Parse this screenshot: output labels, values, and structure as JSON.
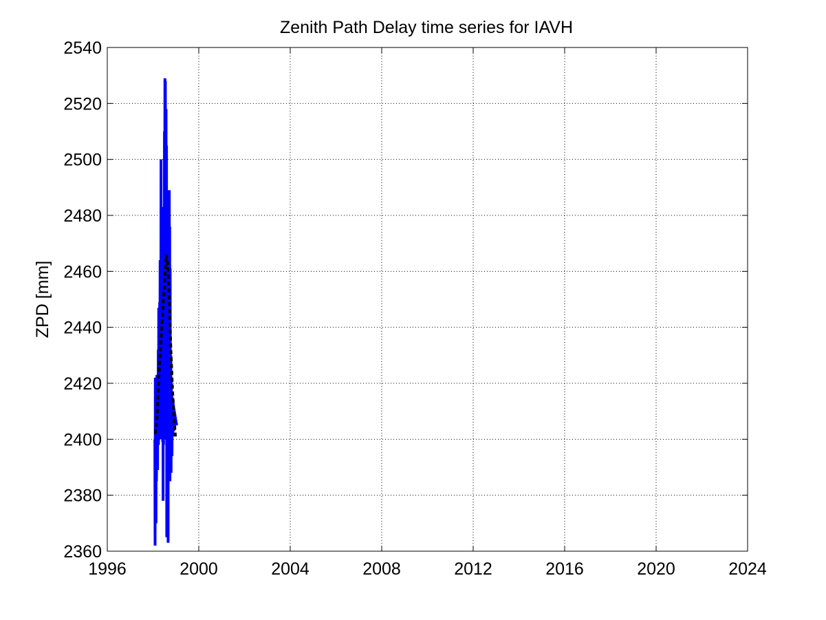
{
  "chart_data": {
    "type": "line",
    "title": "Zenith Path Delay time series for IAVH",
    "xlabel": "",
    "ylabel": "ZPD [mm]",
    "xlim": [
      1996,
      2024
    ],
    "ylim": [
      2360,
      2540
    ],
    "xticks": [
      "1996",
      "2000",
      "2004",
      "2008",
      "2012",
      "2016",
      "2020",
      "2024"
    ],
    "yticks": [
      "2360",
      "2380",
      "2400",
      "2420",
      "2440",
      "2460",
      "2480",
      "2500",
      "2520",
      "2540"
    ],
    "grid": true,
    "series": [
      {
        "style": "solid",
        "color": "#0000ff",
        "x": [
          1998.08,
          1998.09,
          1998.1,
          1998.11,
          1998.12,
          1998.13,
          1998.14,
          1998.15,
          1998.16,
          1998.17,
          1998.18,
          1998.19,
          1998.2,
          1998.21,
          1998.22,
          1998.23,
          1998.24,
          1998.25,
          1998.26,
          1998.27,
          1998.28,
          1998.29,
          1998.3,
          1998.31,
          1998.32,
          1998.33,
          1998.34,
          1998.35,
          1998.36,
          1998.37,
          1998.38,
          1998.39,
          1998.4,
          1998.41,
          1998.42,
          1998.43,
          1998.44,
          1998.45,
          1998.46,
          1998.47,
          1998.48,
          1998.49,
          1998.5,
          1998.51,
          1998.52,
          1998.53,
          1998.54,
          1998.55,
          1998.56,
          1998.57,
          1998.58,
          1998.59,
          1998.6,
          1998.61,
          1998.62,
          1998.63,
          1998.64,
          1998.65,
          1998.66,
          1998.67,
          1998.68,
          1998.69,
          1998.7,
          1998.71,
          1998.72,
          1998.73,
          1998.74,
          1998.75,
          1998.76,
          1998.77,
          1998.78,
          1998.79,
          1998.8,
          1998.81,
          1998.82,
          1998.83,
          1998.84,
          1998.85,
          1998.86,
          1998.87,
          1998.88,
          1998.89,
          1998.9,
          1998.91,
          1998.92,
          1998.93,
          1998.94,
          1998.95,
          1998.96,
          1998.97,
          1998.98,
          1998.99,
          1999.0,
          1999.01,
          1999.02,
          1999.03
        ],
        "y": [
          2400,
          2362,
          2422,
          2390,
          2406,
          2370,
          2418,
          2385,
          2400,
          2423,
          2398,
          2410,
          2389,
          2420,
          2405,
          2432,
          2398,
          2447,
          2412,
          2437,
          2402,
          2449,
          2425,
          2464,
          2405,
          2455,
          2420,
          2500,
          2400,
          2462,
          2431,
          2483,
          2415,
          2468,
          2399,
          2452,
          2378,
          2442,
          2398,
          2473,
          2430,
          2462,
          2510,
          2450,
          2529,
          2480,
          2528,
          2470,
          2445,
          2518,
          2400,
          2505,
          2365,
          2440,
          2410,
          2469,
          2380,
          2450,
          2363,
          2462,
          2420,
          2468,
          2399,
          2489,
          2431,
          2476,
          2385,
          2461,
          2392,
          2410,
          2430,
          2388,
          2422,
          2398,
          2416,
          2394,
          2415,
          2402,
          2413,
          2401,
          2414,
          2404,
          2412,
          2403,
          2411,
          2405,
          2410,
          2404,
          2409,
          2405,
          2408,
          2406,
          2407,
          2405,
          2406,
          2405
        ]
      },
      {
        "style": "dashed",
        "color": "#000000",
        "x": [
          1998.1,
          1998.18,
          1998.25,
          1998.32,
          1998.38,
          1998.45,
          1998.52,
          1998.58,
          1998.65,
          1998.72,
          1998.78,
          1998.85,
          1998.92,
          1998.98
        ],
        "y": [
          2402,
          2408,
          2422,
          2431,
          2440,
          2449,
          2458,
          2466,
          2462,
          2448,
          2432,
          2418,
          2407,
          2401
        ]
      }
    ]
  }
}
